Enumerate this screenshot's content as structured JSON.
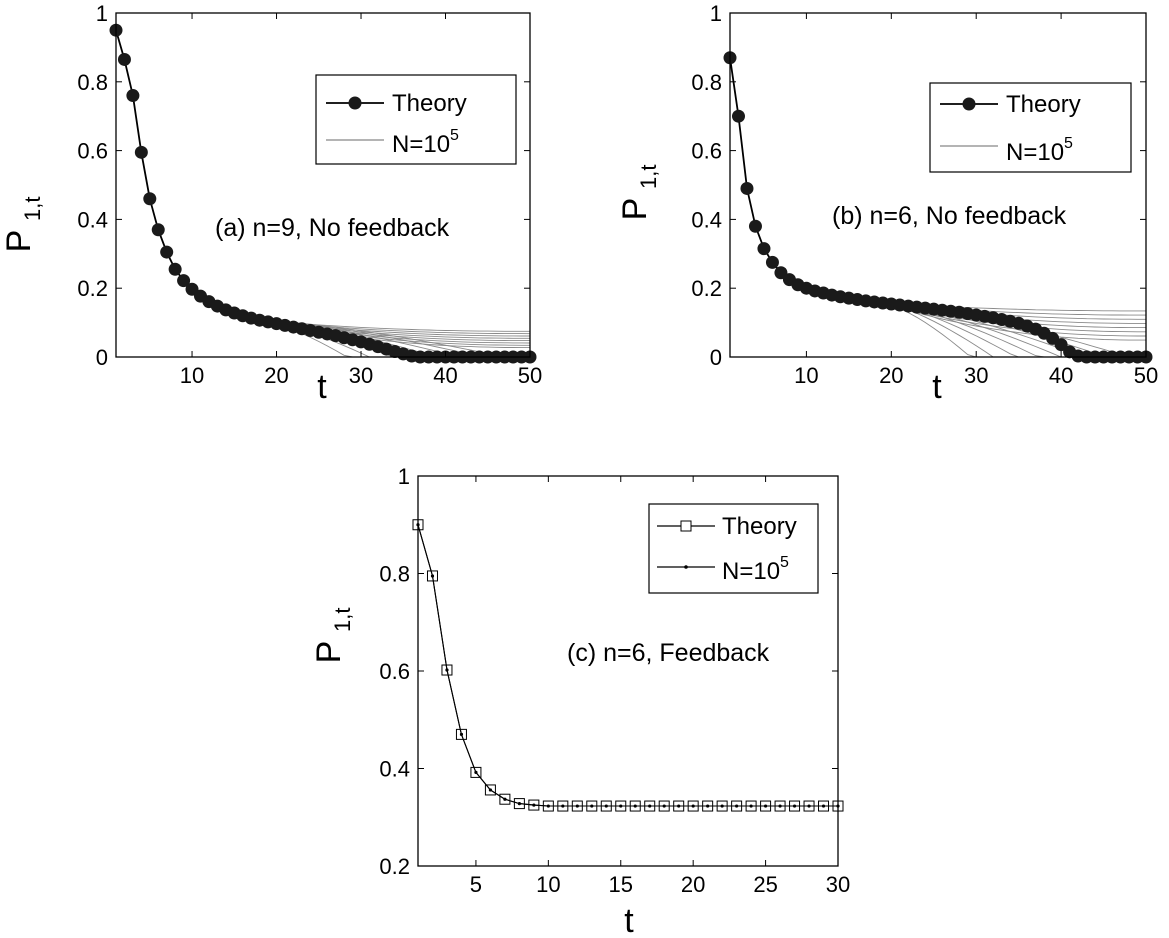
{
  "chart_data": [
    {
      "id": "a",
      "type": "line",
      "xlabel": "t",
      "ylabel": "P",
      "ylabel_subscript": "1,t",
      "xlim": [
        1,
        50
      ],
      "ylim": [
        0,
        1
      ],
      "xticks": [
        10,
        20,
        30,
        40,
        50
      ],
      "yticks": [
        0,
        0.2,
        0.4,
        0.6,
        0.8,
        1
      ],
      "xtick_labels": [
        "10",
        "20",
        "30",
        "40",
        "50"
      ],
      "ytick_labels": [
        "0",
        "0.2",
        "0.4",
        "0.6",
        "0.8",
        "1"
      ],
      "annotation": "(a) n=9, No feedback",
      "legend_position": "upper-right",
      "legend": [
        {
          "label_main": "Theory",
          "label_sup": "",
          "style": "line-filled-circle"
        },
        {
          "label_main": "N=10",
          "label_sup": "5",
          "style": "thin-gray-lines"
        }
      ],
      "series": [
        {
          "name": "Theory",
          "marker": "filled-circle",
          "x": [
            1,
            2,
            3,
            4,
            5,
            6,
            7,
            8,
            9,
            10,
            11,
            12,
            13,
            14,
            15,
            16,
            17,
            18,
            19,
            20,
            21,
            22,
            23,
            24,
            25,
            26,
            27,
            28,
            29,
            30,
            31,
            32,
            33,
            34,
            35,
            36,
            37,
            38,
            39,
            40,
            41,
            42,
            43,
            44,
            45,
            46,
            47,
            48,
            49,
            50
          ],
          "y": [
            0.95,
            0.865,
            0.76,
            0.595,
            0.46,
            0.37,
            0.305,
            0.255,
            0.222,
            0.197,
            0.177,
            0.161,
            0.148,
            0.137,
            0.128,
            0.12,
            0.113,
            0.107,
            0.102,
            0.097,
            0.092,
            0.087,
            0.082,
            0.077,
            0.072,
            0.067,
            0.062,
            0.056,
            0.05,
            0.044,
            0.037,
            0.03,
            0.023,
            0.016,
            0.009,
            0.003,
            0,
            0,
            0,
            0,
            0,
            0,
            0,
            0,
            0,
            0,
            0,
            0,
            0,
            0
          ]
        }
      ],
      "simulation": {
        "name": "N=10^5",
        "runs": 16,
        "split_t": 18,
        "end_min": 0,
        "end_max": 0.078,
        "zero_t_min": 27,
        "zero_t_max": 47
      }
    },
    {
      "id": "b",
      "type": "line",
      "xlabel": "t",
      "ylabel": "P",
      "ylabel_subscript": "1,t",
      "xlim": [
        1,
        50
      ],
      "ylim": [
        0,
        1
      ],
      "xticks": [
        10,
        20,
        30,
        40,
        50
      ],
      "yticks": [
        0,
        0.2,
        0.4,
        0.6,
        0.8,
        1
      ],
      "xtick_labels": [
        "10",
        "20",
        "30",
        "40",
        "50"
      ],
      "ytick_labels": [
        "0",
        "0.2",
        "0.4",
        "0.6",
        "0.8",
        "1"
      ],
      "annotation": "(b) n=6, No feedback",
      "legend_position": "upper-right",
      "legend": [
        {
          "label_main": "Theory",
          "label_sup": "",
          "style": "line-filled-circle"
        },
        {
          "label_main": "N=10",
          "label_sup": "5",
          "style": "thin-gray-lines"
        }
      ],
      "series": [
        {
          "name": "Theory",
          "marker": "filled-circle",
          "x": [
            1,
            2,
            3,
            4,
            5,
            6,
            7,
            8,
            9,
            10,
            11,
            12,
            13,
            14,
            15,
            16,
            17,
            18,
            19,
            20,
            21,
            22,
            23,
            24,
            25,
            26,
            27,
            28,
            29,
            30,
            31,
            32,
            33,
            34,
            35,
            36,
            37,
            38,
            39,
            40,
            41,
            42,
            43,
            44,
            45,
            46,
            47,
            48,
            49,
            50
          ],
          "y": [
            0.87,
            0.7,
            0.49,
            0.38,
            0.315,
            0.275,
            0.245,
            0.225,
            0.21,
            0.2,
            0.192,
            0.186,
            0.18,
            0.175,
            0.171,
            0.167,
            0.163,
            0.16,
            0.157,
            0.154,
            0.151,
            0.148,
            0.145,
            0.142,
            0.139,
            0.136,
            0.133,
            0.13,
            0.126,
            0.122,
            0.118,
            0.114,
            0.109,
            0.104,
            0.098,
            0.09,
            0.081,
            0.069,
            0.054,
            0.036,
            0.015,
            0.003,
            0,
            0,
            0,
            0,
            0,
            0,
            0,
            0
          ]
        }
      ],
      "simulation": {
        "name": "N=10^5",
        "runs": 16,
        "split_t": 19,
        "end_min": 0,
        "end_max": 0.14,
        "zero_t_min": 28,
        "zero_t_max": 48
      }
    },
    {
      "id": "c",
      "type": "line",
      "xlabel": "t",
      "ylabel": "P",
      "ylabel_subscript": "1,t",
      "xlim": [
        1,
        30
      ],
      "ylim": [
        0.2,
        1
      ],
      "xticks": [
        5,
        10,
        15,
        20,
        25,
        30
      ],
      "yticks": [
        0.2,
        0.4,
        0.6,
        0.8,
        1
      ],
      "xtick_labels": [
        "5",
        "10",
        "15",
        "20",
        "25",
        "30"
      ],
      "ytick_labels": [
        "0.2",
        "0.4",
        "0.6",
        "0.8",
        "1"
      ],
      "annotation": "(c) n=6, Feedback",
      "legend_position": "upper-right",
      "legend": [
        {
          "label_main": "Theory",
          "label_sup": "",
          "style": "line-open-square"
        },
        {
          "label_main": "N=10",
          "label_sup": "5",
          "style": "line-dot"
        }
      ],
      "series": [
        {
          "name": "Theory",
          "marker": "open-square",
          "x": [
            1,
            2,
            3,
            4,
            5,
            6,
            7,
            8,
            9,
            10,
            11,
            12,
            13,
            14,
            15,
            16,
            17,
            18,
            19,
            20,
            21,
            22,
            23,
            24,
            25,
            26,
            27,
            28,
            29,
            30
          ],
          "y": [
            0.9,
            0.795,
            0.602,
            0.47,
            0.392,
            0.356,
            0.337,
            0.328,
            0.325,
            0.323,
            0.323,
            0.323,
            0.323,
            0.323,
            0.323,
            0.323,
            0.323,
            0.323,
            0.323,
            0.323,
            0.323,
            0.323,
            0.323,
            0.323,
            0.323,
            0.323,
            0.323,
            0.323,
            0.323,
            0.323
          ]
        },
        {
          "name": "N=10^5",
          "marker": "dot",
          "x": [
            1,
            2,
            3,
            4,
            5,
            6,
            7,
            8,
            9,
            10,
            11,
            12,
            13,
            14,
            15,
            16,
            17,
            18,
            19,
            20,
            21,
            22,
            23,
            24,
            25,
            26,
            27,
            28,
            29,
            30
          ],
          "y": [
            0.9,
            0.795,
            0.602,
            0.47,
            0.392,
            0.356,
            0.337,
            0.328,
            0.325,
            0.323,
            0.323,
            0.323,
            0.323,
            0.323,
            0.323,
            0.323,
            0.323,
            0.323,
            0.323,
            0.323,
            0.323,
            0.323,
            0.323,
            0.323,
            0.323,
            0.323,
            0.323,
            0.323,
            0.323,
            0.323
          ]
        }
      ]
    }
  ]
}
